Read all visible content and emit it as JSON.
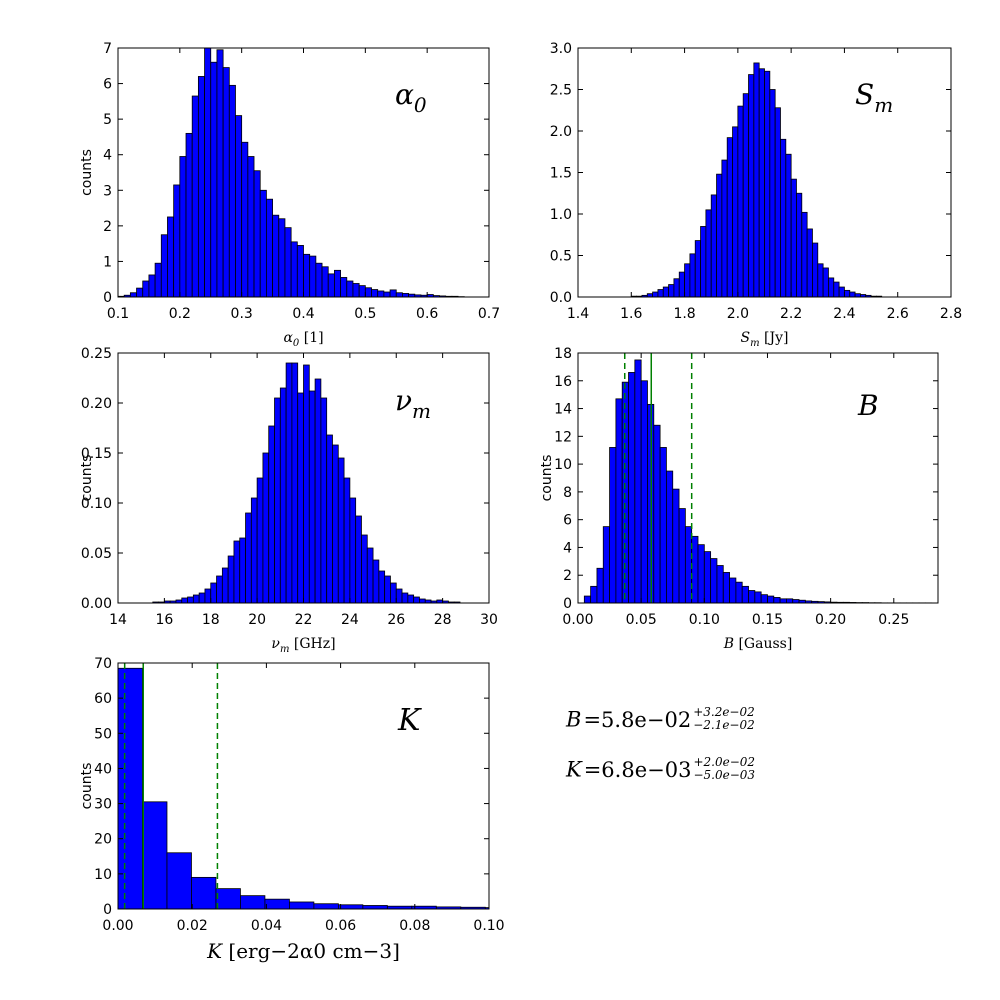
{
  "style": {
    "bar_color": "#0000ff",
    "edge_color": "#000000",
    "marker_color": "#008000"
  },
  "chart_data": [
    {
      "type": "bar",
      "title": "α0",
      "xlabel": "α0 [1]",
      "ylabel": "counts",
      "xlim": [
        0.1,
        0.7
      ],
      "ylim": [
        0,
        7
      ],
      "xticks": [
        "0.1",
        "0.2",
        "0.3",
        "0.4",
        "0.5",
        "0.6",
        "0.7"
      ],
      "yticks": [
        "0",
        "1",
        "2",
        "3",
        "4",
        "5",
        "6",
        "7"
      ],
      "bin_start": 0.1,
      "bin_width": 0.01,
      "values": [
        0.02,
        0.05,
        0.12,
        0.25,
        0.45,
        0.62,
        0.95,
        1.75,
        2.25,
        3.15,
        3.95,
        4.6,
        5.65,
        6.2,
        7.0,
        6.6,
        6.95,
        6.45,
        5.95,
        5.1,
        4.35,
        3.95,
        3.55,
        3.0,
        2.75,
        2.3,
        2.2,
        1.95,
        1.55,
        1.45,
        1.2,
        1.15,
        0.95,
        0.85,
        0.65,
        0.75,
        0.55,
        0.45,
        0.38,
        0.32,
        0.26,
        0.21,
        0.17,
        0.14,
        0.2,
        0.12,
        0.1,
        0.08,
        0.06,
        0.05,
        0.07,
        0.04,
        0.03,
        0.02,
        0.02,
        0.01
      ]
    },
    {
      "type": "bar",
      "title": "Sm",
      "xlabel": "Sm [Jy]",
      "ylabel": "",
      "xlim": [
        1.4,
        2.8
      ],
      "ylim": [
        0,
        3.0
      ],
      "xticks": [
        "1.4",
        "1.6",
        "1.8",
        "2.0",
        "2.2",
        "2.4",
        "2.6",
        "2.8"
      ],
      "yticks": [
        "0.0",
        "0.5",
        "1.0",
        "1.5",
        "2.0",
        "2.5",
        "3.0"
      ],
      "bin_start": 1.6,
      "bin_width": 0.02,
      "values": [
        0.01,
        0.01,
        0.02,
        0.04,
        0.06,
        0.09,
        0.12,
        0.15,
        0.22,
        0.3,
        0.4,
        0.52,
        0.68,
        0.85,
        1.05,
        1.23,
        1.48,
        1.65,
        1.92,
        2.05,
        2.3,
        2.45,
        2.68,
        2.82,
        2.75,
        2.72,
        2.5,
        2.28,
        1.9,
        1.72,
        1.42,
        1.25,
        1.02,
        0.82,
        0.65,
        0.4,
        0.35,
        0.23,
        0.18,
        0.12,
        0.08,
        0.06,
        0.04,
        0.03,
        0.02,
        0.01,
        0.01
      ]
    },
    {
      "type": "bar",
      "title": "νm",
      "xlabel": "νm [GHz]",
      "ylabel": "counts",
      "xlim": [
        14,
        30
      ],
      "ylim": [
        0,
        0.25
      ],
      "xticks": [
        "14",
        "16",
        "18",
        "20",
        "22",
        "24",
        "26",
        "28",
        "30"
      ],
      "yticks": [
        "0.00",
        "0.05",
        "0.10",
        "0.15",
        "0.20",
        "0.25"
      ],
      "bin_start": 15.5,
      "bin_width": 0.25,
      "values": [
        0.001,
        0.001,
        0.002,
        0.002,
        0.003,
        0.005,
        0.006,
        0.008,
        0.01,
        0.014,
        0.02,
        0.027,
        0.035,
        0.047,
        0.062,
        0.065,
        0.09,
        0.105,
        0.125,
        0.15,
        0.177,
        0.205,
        0.215,
        0.24,
        0.24,
        0.21,
        0.238,
        0.212,
        0.224,
        0.205,
        0.168,
        0.158,
        0.145,
        0.125,
        0.105,
        0.087,
        0.068,
        0.055,
        0.043,
        0.032,
        0.027,
        0.02,
        0.014,
        0.01,
        0.008,
        0.006,
        0.004,
        0.003,
        0.002,
        0.003,
        0.002,
        0.001,
        0.001
      ]
    },
    {
      "type": "bar",
      "title": "B",
      "xlabel": "B [Gauss]",
      "ylabel": "counts",
      "xlim": [
        0.0,
        0.285
      ],
      "ylim": [
        0,
        18
      ],
      "xticks": [
        "0.00",
        "0.05",
        "0.10",
        "0.15",
        "0.20",
        "0.25"
      ],
      "yticks": [
        "0",
        "2",
        "4",
        "6",
        "8",
        "10",
        "12",
        "14",
        "16",
        "18"
      ],
      "bin_start": 0.005,
      "bin_width": 0.005,
      "values": [
        0.5,
        1.2,
        2.5,
        5.5,
        11.2,
        14.7,
        15.9,
        16.6,
        17.5,
        16.0,
        14.3,
        12.8,
        11.2,
        9.5,
        8.2,
        6.8,
        5.5,
        4.8,
        4.2,
        3.7,
        3.2,
        2.7,
        2.2,
        1.8,
        1.5,
        1.2,
        0.9,
        0.8,
        0.6,
        0.5,
        0.4,
        0.3,
        0.3,
        0.25,
        0.2,
        0.15,
        0.12,
        0.1,
        0.08,
        0.06,
        0.05,
        0.05,
        0.04,
        0.03,
        0.03,
        0.02,
        0.02,
        0.01,
        0.01,
        0.01,
        0.01,
        0.01,
        0.01,
        0.01,
        0.01
      ],
      "markers": {
        "median": 0.058,
        "lower": 0.037,
        "upper": 0.09
      }
    },
    {
      "type": "bar",
      "title": "K",
      "xlabel": "K [erg−2α0 cm−3]",
      "ylabel": "counts",
      "xlim": [
        0.0,
        0.1
      ],
      "ylim": [
        0,
        70
      ],
      "xticks": [
        "0.00",
        "0.02",
        "0.04",
        "0.06",
        "0.08",
        "0.10"
      ],
      "yticks": [
        "0",
        "10",
        "20",
        "30",
        "40",
        "50",
        "60",
        "70"
      ],
      "bin_start": 0.0,
      "bin_width": 0.0066,
      "values": [
        68.5,
        30.5,
        16.0,
        9.0,
        5.8,
        3.8,
        2.8,
        2.0,
        1.5,
        1.2,
        1.0,
        0.8,
        0.8,
        0.6,
        0.5,
        0.4
      ],
      "markers": {
        "median": 0.0068,
        "lower": 0.0018,
        "upper": 0.0268
      }
    }
  ],
  "summary": {
    "b_line": {
      "var": "B",
      "value": "=5.8e−02",
      "sup": "+3.2e−02",
      "sub": "−2.1e−02"
    },
    "k_line": {
      "var": "K",
      "value": "=6.8e−03",
      "sup": "+2.0e−02",
      "sub": "−5.0e−03"
    }
  }
}
